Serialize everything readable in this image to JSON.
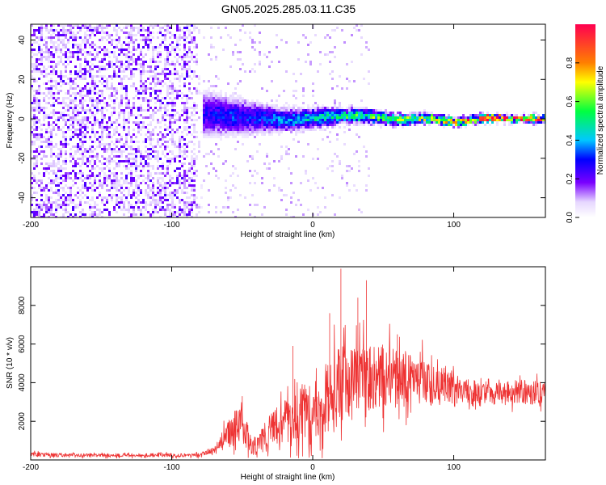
{
  "figure_title": "GN05.2025.285.03.11.C35",
  "chart_data": [
    {
      "type": "heatmap",
      "title": "GN05.2025.285.03.11.C35",
      "xlabel": "Height of straight line (km)",
      "ylabel": "Frequency (Hz)",
      "xlim": [
        -200,
        165
      ],
      "ylim": [
        -50,
        48
      ],
      "x_ticks": [
        -200,
        -100,
        0,
        100
      ],
      "y_ticks": [
        -40,
        -20,
        0,
        20,
        40
      ],
      "grid": false,
      "colorbar": {
        "label": "Normalized spectral amplitude",
        "range": [
          0,
          1
        ],
        "ticks": [
          0.0,
          0.2,
          0.4,
          0.6,
          0.8
        ]
      },
      "noise_region_x": [
        -200,
        -78
      ],
      "signal_onset_x": -78,
      "ridge": {
        "x": [
          -78,
          -60,
          -40,
          -20,
          0,
          20,
          40,
          60,
          80,
          100,
          120,
          140,
          165
        ],
        "center_hz": [
          3,
          2,
          1,
          0,
          1,
          2,
          2,
          0,
          1,
          -1,
          1,
          0.5,
          0.5
        ],
        "peak_amplitude": [
          0.25,
          0.3,
          0.3,
          0.35,
          0.45,
          0.5,
          0.55,
          0.6,
          0.7,
          0.8,
          0.9,
          0.95,
          0.95
        ],
        "halfwidth_hz": [
          12,
          10,
          8,
          6,
          5,
          4,
          3.5,
          3,
          2.5,
          2,
          2,
          1.8,
          1.8
        ]
      }
    },
    {
      "type": "line",
      "xlabel": "Height of straight line (km)",
      "ylabel": "SNR (10 * v/v)",
      "xlim": [
        -200,
        165
      ],
      "ylim": [
        0,
        10000
      ],
      "x_ticks": [
        -200,
        -100,
        0,
        100
      ],
      "y_ticks": [
        2000,
        4000,
        6000,
        8000
      ],
      "grid": false,
      "color": "#ee3333",
      "series": [
        {
          "x": [
            -200,
            -180,
            -160,
            -140,
            -120,
            -100,
            -80,
            -70,
            -60,
            -50,
            -45,
            -40,
            -30,
            -20,
            -10,
            0,
            10,
            20,
            30,
            40,
            50,
            60,
            70,
            80,
            90,
            100,
            120,
            140,
            165
          ],
          "values": [
            300,
            250,
            250,
            250,
            250,
            250,
            250,
            500,
            1300,
            2000,
            900,
            700,
            1500,
            2000,
            2300,
            2700,
            3300,
            3800,
            4000,
            4100,
            4300,
            4200,
            4200,
            4000,
            3800,
            3600,
            3500,
            3500,
            3500
          ],
          "spread": [
            150,
            120,
            120,
            120,
            120,
            120,
            120,
            300,
            900,
            1400,
            700,
            600,
            1100,
            1400,
            1700,
            1900,
            2300,
            2600,
            2600,
            2400,
            2200,
            1900,
            1700,
            1500,
            1300,
            1100,
            900,
            800,
            800
          ]
        }
      ],
      "spikes": [
        {
          "x": 20,
          "y": 9900
        },
        {
          "x": 38,
          "y": 9300
        },
        {
          "x": 32,
          "y": 8400
        },
        {
          "x": 12,
          "y": 7600
        },
        {
          "x": 60,
          "y": 6500
        },
        {
          "x": -14,
          "y": 5900
        },
        {
          "x": -50,
          "y": 3300
        }
      ]
    }
  ]
}
